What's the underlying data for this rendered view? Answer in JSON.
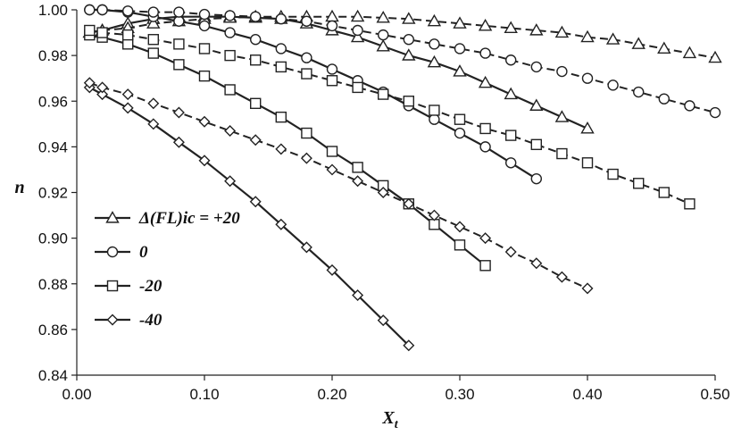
{
  "chart_data": {
    "type": "line",
    "xlabel": "X",
    "xlabel_sub": "t",
    "ylabel": "n",
    "xlim": [
      0.0,
      0.5
    ],
    "ylim": [
      0.84,
      1.0
    ],
    "x_ticks": [
      "0.00",
      "0.10",
      "0.20",
      "0.30",
      "0.40",
      "0.50"
    ],
    "y_ticks": [
      "0.84",
      "0.86",
      "0.88",
      "0.90",
      "0.92",
      "0.94",
      "0.96",
      "0.98",
      "1.00"
    ],
    "x_tick_values": [
      0.0,
      0.1,
      0.2,
      0.3,
      0.4,
      0.5
    ],
    "y_tick_values": [
      0.84,
      0.86,
      0.88,
      0.9,
      0.92,
      0.94,
      0.96,
      0.98,
      1.0
    ],
    "grid": false,
    "legend_position": "left-middle",
    "legend": [
      "Δ(FL)ic = +20",
      "0",
      "-20",
      "-40"
    ],
    "series": [
      {
        "name": "Δ(FL)ic = +20",
        "marker": "triangle",
        "line": "solid",
        "x": [
          0.01,
          0.02,
          0.04,
          0.06,
          0.08,
          0.1,
          0.12,
          0.14,
          0.16,
          0.18,
          0.2,
          0.22,
          0.24,
          0.26,
          0.28,
          0.3,
          0.32,
          0.34,
          0.36,
          0.38,
          0.4
        ],
        "y": [
          0.99,
          0.991,
          0.994,
          0.996,
          0.997,
          0.997,
          0.997,
          0.9965,
          0.996,
          0.994,
          0.991,
          0.988,
          0.984,
          0.98,
          0.977,
          0.973,
          0.968,
          0.963,
          0.958,
          0.953,
          0.948
        ]
      },
      {
        "name": "Δ(FL)ic = +20",
        "marker": "triangle",
        "line": "dashed",
        "x": [
          0.01,
          0.02,
          0.04,
          0.06,
          0.08,
          0.1,
          0.12,
          0.14,
          0.16,
          0.18,
          0.2,
          0.22,
          0.24,
          0.26,
          0.28,
          0.3,
          0.32,
          0.34,
          0.36,
          0.38,
          0.4,
          0.42,
          0.44,
          0.46,
          0.48,
          0.5
        ],
        "y": [
          0.99,
          0.991,
          0.992,
          0.994,
          0.995,
          0.996,
          0.9965,
          0.997,
          0.997,
          0.997,
          0.997,
          0.997,
          0.9965,
          0.996,
          0.995,
          0.994,
          0.993,
          0.992,
          0.991,
          0.99,
          0.988,
          0.987,
          0.985,
          0.983,
          0.981,
          0.979
        ]
      },
      {
        "name": "0",
        "marker": "circle",
        "line": "solid",
        "x": [
          0.01,
          0.02,
          0.04,
          0.06,
          0.08,
          0.1,
          0.12,
          0.14,
          0.16,
          0.18,
          0.2,
          0.22,
          0.24,
          0.26,
          0.28,
          0.3,
          0.32,
          0.34,
          0.36
        ],
        "y": [
          1.0,
          1.0,
          0.999,
          0.997,
          0.995,
          0.993,
          0.99,
          0.987,
          0.983,
          0.979,
          0.974,
          0.969,
          0.964,
          0.958,
          0.952,
          0.946,
          0.94,
          0.933,
          0.926
        ]
      },
      {
        "name": "0",
        "marker": "circle",
        "line": "dashed",
        "x": [
          0.01,
          0.02,
          0.04,
          0.06,
          0.08,
          0.1,
          0.12,
          0.14,
          0.16,
          0.18,
          0.2,
          0.22,
          0.24,
          0.26,
          0.28,
          0.3,
          0.32,
          0.34,
          0.36,
          0.38,
          0.4,
          0.42,
          0.44,
          0.46,
          0.48,
          0.5
        ],
        "y": [
          1.0,
          1.0,
          0.9995,
          0.999,
          0.999,
          0.998,
          0.9975,
          0.997,
          0.996,
          0.995,
          0.993,
          0.991,
          0.989,
          0.987,
          0.985,
          0.983,
          0.981,
          0.978,
          0.975,
          0.973,
          0.97,
          0.967,
          0.964,
          0.961,
          0.958,
          0.955
        ]
      },
      {
        "name": "-20",
        "marker": "square",
        "line": "solid",
        "x": [
          0.01,
          0.02,
          0.04,
          0.06,
          0.08,
          0.1,
          0.12,
          0.14,
          0.16,
          0.18,
          0.2,
          0.22,
          0.24,
          0.26,
          0.28,
          0.3,
          0.32
        ],
        "y": [
          0.989,
          0.988,
          0.985,
          0.981,
          0.976,
          0.971,
          0.965,
          0.959,
          0.953,
          0.946,
          0.938,
          0.931,
          0.923,
          0.915,
          0.906,
          0.897,
          0.888
        ]
      },
      {
        "name": "-20",
        "marker": "square",
        "line": "dashed",
        "x": [
          0.01,
          0.02,
          0.04,
          0.06,
          0.08,
          0.1,
          0.12,
          0.14,
          0.16,
          0.18,
          0.2,
          0.22,
          0.24,
          0.26,
          0.28,
          0.3,
          0.32,
          0.34,
          0.36,
          0.38,
          0.4,
          0.42,
          0.44,
          0.46,
          0.48
        ],
        "y": [
          0.991,
          0.99,
          0.989,
          0.987,
          0.985,
          0.983,
          0.98,
          0.978,
          0.975,
          0.972,
          0.969,
          0.966,
          0.963,
          0.96,
          0.956,
          0.952,
          0.948,
          0.945,
          0.941,
          0.937,
          0.933,
          0.928,
          0.924,
          0.92,
          0.915
        ]
      },
      {
        "name": "-40",
        "marker": "diamond",
        "line": "solid",
        "x": [
          0.01,
          0.02,
          0.04,
          0.06,
          0.08,
          0.1,
          0.12,
          0.14,
          0.16,
          0.18,
          0.2,
          0.22,
          0.24,
          0.26
        ],
        "y": [
          0.966,
          0.963,
          0.957,
          0.95,
          0.942,
          0.934,
          0.925,
          0.916,
          0.906,
          0.896,
          0.886,
          0.875,
          0.864,
          0.853
        ]
      },
      {
        "name": "-40",
        "marker": "diamond",
        "line": "dashed",
        "x": [
          0.01,
          0.02,
          0.04,
          0.06,
          0.08,
          0.1,
          0.12,
          0.14,
          0.16,
          0.18,
          0.2,
          0.22,
          0.24,
          0.26,
          0.28,
          0.3,
          0.32,
          0.34,
          0.36,
          0.38,
          0.4
        ],
        "y": [
          0.968,
          0.966,
          0.963,
          0.959,
          0.955,
          0.951,
          0.947,
          0.943,
          0.939,
          0.935,
          0.93,
          0.925,
          0.92,
          0.915,
          0.91,
          0.905,
          0.9,
          0.894,
          0.889,
          0.883,
          0.878
        ]
      }
    ]
  }
}
